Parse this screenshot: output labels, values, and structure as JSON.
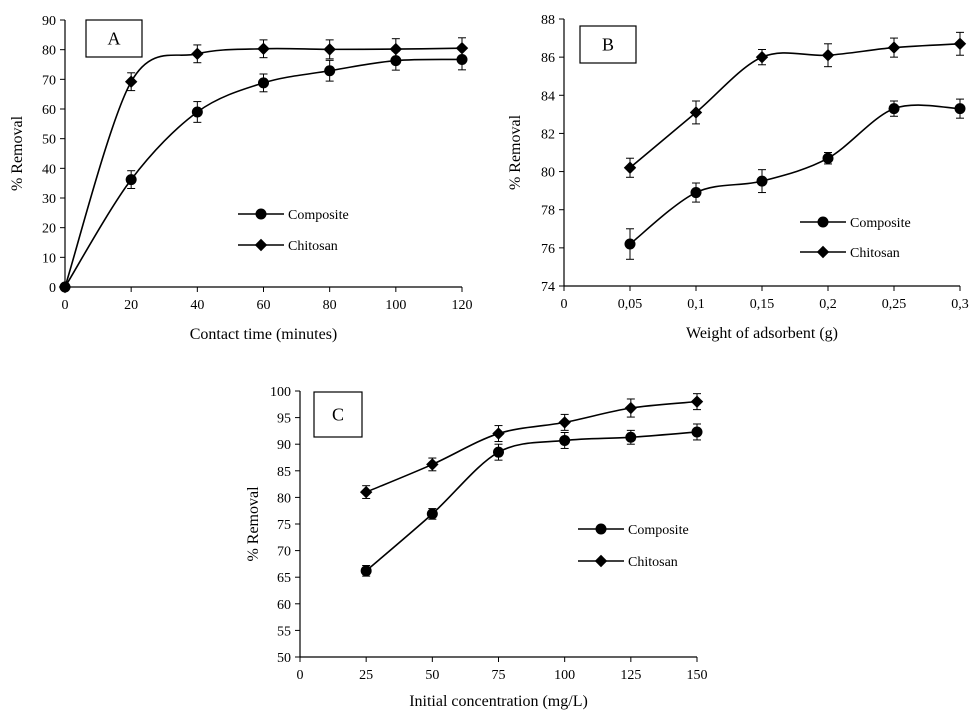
{
  "colors": {
    "line": "#000000",
    "background": "#ffffff"
  },
  "markers": {
    "composite": "circle",
    "chitosan": "diamond"
  },
  "chart_data": [
    {
      "panel": "A",
      "type": "line",
      "xlabel": "Contact time (minutes)",
      "ylabel": "% Removal",
      "x": [
        0,
        20,
        40,
        60,
        80,
        100,
        120
      ],
      "xticks": [
        "0",
        "20",
        "40",
        "60",
        "80",
        "100",
        "120"
      ],
      "yticks": [
        "0",
        "10",
        "20",
        "30",
        "40",
        "50",
        "60",
        "70",
        "80",
        "90"
      ],
      "xlim": [
        0,
        120
      ],
      "ylim": [
        0,
        90
      ],
      "legend_position": "right-middle",
      "series": [
        {
          "name": "Composite",
          "marker": "circle",
          "values": [
            0,
            36.2,
            59.0,
            68.8,
            72.9,
            76.3,
            76.7
          ],
          "errors": [
            0,
            3.0,
            3.5,
            3.0,
            3.5,
            3.2,
            3.5
          ]
        },
        {
          "name": "Chitosan",
          "marker": "diamond",
          "values": [
            0,
            69.2,
            78.6,
            80.3,
            80.1,
            80.2,
            80.5
          ],
          "errors": [
            0,
            3.0,
            3.0,
            3.0,
            3.2,
            3.5,
            3.5
          ]
        }
      ]
    },
    {
      "panel": "B",
      "type": "line",
      "xlabel": "Weight of adsorbent (g)",
      "ylabel": "% Removal",
      "x": [
        0.05,
        0.1,
        0.15,
        0.2,
        0.25,
        0.3
      ],
      "xtick_values": [
        0,
        0.05,
        0.1,
        0.15,
        0.2,
        0.25,
        0.3
      ],
      "xticks": [
        "0",
        "0,05",
        "0,1",
        "0,15",
        "0,2",
        "0,25",
        "0,3"
      ],
      "yticks": [
        "74",
        "76",
        "78",
        "80",
        "82",
        "84",
        "86",
        "88"
      ],
      "xlim": [
        0,
        0.3
      ],
      "ylim": [
        74,
        88
      ],
      "legend_position": "bottom-right",
      "series": [
        {
          "name": "Composite",
          "marker": "circle",
          "values": [
            76.2,
            78.9,
            79.5,
            80.7,
            83.3,
            83.3
          ],
          "errors": [
            0.8,
            0.5,
            0.6,
            0.3,
            0.4,
            0.5
          ]
        },
        {
          "name": "Chitosan",
          "marker": "diamond",
          "values": [
            80.2,
            83.1,
            86.0,
            86.1,
            86.5,
            86.7
          ],
          "errors": [
            0.5,
            0.6,
            0.4,
            0.6,
            0.5,
            0.6
          ]
        }
      ]
    },
    {
      "panel": "C",
      "type": "line",
      "xlabel": "Initial concentration (mg/L)",
      "ylabel": "% Removal",
      "x": [
        25,
        50,
        75,
        100,
        125,
        150
      ],
      "xtick_values": [
        0,
        25,
        50,
        75,
        100,
        125,
        150
      ],
      "xticks": [
        "0",
        "25",
        "50",
        "75",
        "100",
        "125",
        "150"
      ],
      "yticks": [
        "50",
        "55",
        "60",
        "65",
        "70",
        "75",
        "80",
        "85",
        "90",
        "95",
        "100"
      ],
      "xlim": [
        0,
        150
      ],
      "ylim": [
        50,
        100
      ],
      "legend_position": "right-middle",
      "series": [
        {
          "name": "Composite",
          "marker": "circle",
          "values": [
            66.2,
            76.9,
            88.5,
            90.7,
            91.3,
            92.3
          ],
          "errors": [
            1.0,
            1.0,
            1.5,
            1.5,
            1.3,
            1.5
          ]
        },
        {
          "name": "Chitosan",
          "marker": "diamond",
          "values": [
            81.0,
            86.2,
            92.0,
            94.1,
            96.8,
            98.0
          ],
          "errors": [
            1.2,
            1.2,
            1.5,
            1.5,
            1.7,
            1.5
          ]
        }
      ]
    }
  ]
}
